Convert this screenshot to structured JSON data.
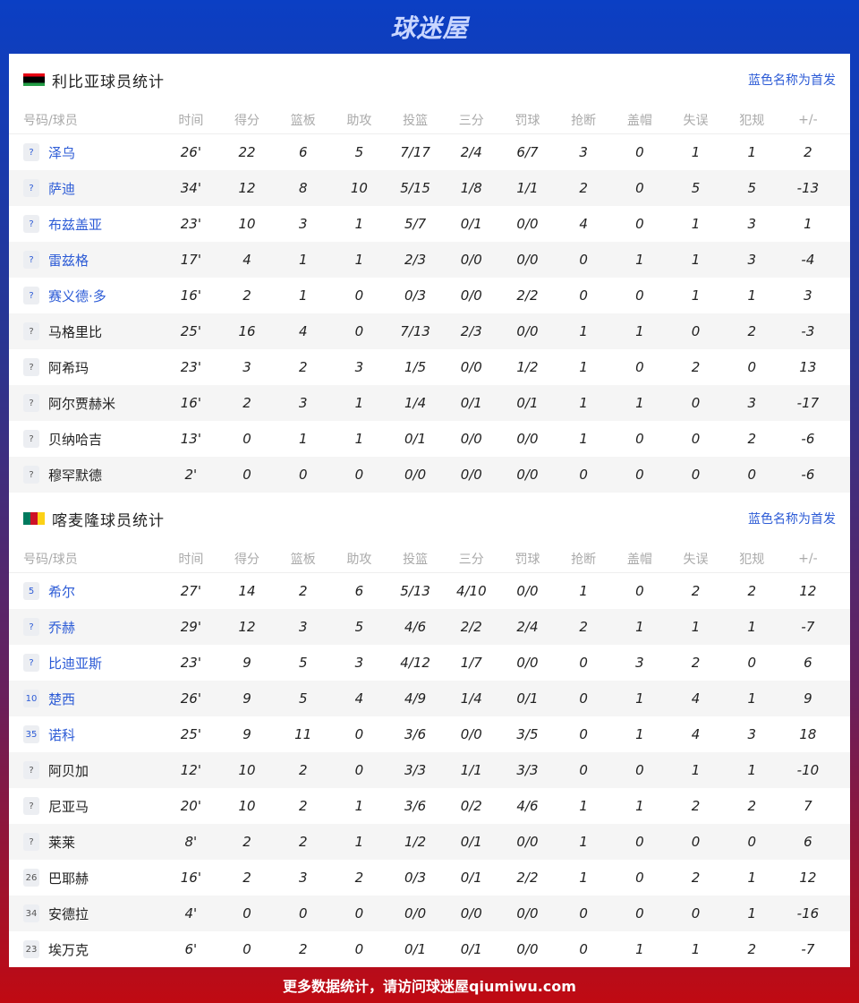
{
  "header": {
    "logo": "球迷屋"
  },
  "columns": [
    "号码/球员",
    "时间",
    "得分",
    "篮板",
    "助攻",
    "投篮",
    "三分",
    "罚球",
    "抢断",
    "盖帽",
    "失误",
    "犯规",
    "+/-"
  ],
  "teams": [
    {
      "title": "利比亚球员统计",
      "flag": "libya-flag",
      "note": "蓝色名称为首发",
      "players": [
        {
          "num": "?",
          "name": "泽乌",
          "starter": true,
          "stats": [
            "26'",
            "22",
            "6",
            "5",
            "7/17",
            "2/4",
            "6/7",
            "3",
            "0",
            "1",
            "1",
            "2"
          ]
        },
        {
          "num": "?",
          "name": "萨迪",
          "starter": true,
          "stats": [
            "34'",
            "12",
            "8",
            "10",
            "5/15",
            "1/8",
            "1/1",
            "2",
            "0",
            "5",
            "5",
            "-13"
          ]
        },
        {
          "num": "?",
          "name": "布兹盖亚",
          "starter": true,
          "stats": [
            "23'",
            "10",
            "3",
            "1",
            "5/7",
            "0/1",
            "0/0",
            "4",
            "0",
            "1",
            "3",
            "1"
          ]
        },
        {
          "num": "?",
          "name": "雷兹格",
          "starter": true,
          "stats": [
            "17'",
            "4",
            "1",
            "1",
            "2/3",
            "0/0",
            "0/0",
            "0",
            "1",
            "1",
            "3",
            "-4"
          ]
        },
        {
          "num": "?",
          "name": "赛义德·多",
          "starter": true,
          "stats": [
            "16'",
            "2",
            "1",
            "0",
            "0/3",
            "0/0",
            "2/2",
            "0",
            "0",
            "1",
            "1",
            "3"
          ]
        },
        {
          "num": "?",
          "name": "马格里比",
          "starter": false,
          "stats": [
            "25'",
            "16",
            "4",
            "0",
            "7/13",
            "2/3",
            "0/0",
            "1",
            "1",
            "0",
            "2",
            "-3"
          ]
        },
        {
          "num": "?",
          "name": "阿希玛",
          "starter": false,
          "stats": [
            "23'",
            "3",
            "2",
            "3",
            "1/5",
            "0/0",
            "1/2",
            "1",
            "0",
            "2",
            "0",
            "13"
          ]
        },
        {
          "num": "?",
          "name": "阿尔贾赫米",
          "starter": false,
          "stats": [
            "16'",
            "2",
            "3",
            "1",
            "1/4",
            "0/1",
            "0/1",
            "1",
            "1",
            "0",
            "3",
            "-17"
          ]
        },
        {
          "num": "?",
          "name": "贝纳哈吉",
          "starter": false,
          "stats": [
            "13'",
            "0",
            "1",
            "1",
            "0/1",
            "0/0",
            "0/0",
            "1",
            "0",
            "0",
            "2",
            "-6"
          ]
        },
        {
          "num": "?",
          "name": "穆罕默德",
          "starter": false,
          "stats": [
            "2'",
            "0",
            "0",
            "0",
            "0/0",
            "0/0",
            "0/0",
            "0",
            "0",
            "0",
            "0",
            "-6"
          ]
        }
      ]
    },
    {
      "title": "喀麦隆球员统计",
      "flag": "cameroon-flag",
      "note": "蓝色名称为首发",
      "players": [
        {
          "num": "5",
          "name": "希尔",
          "starter": true,
          "stats": [
            "27'",
            "14",
            "2",
            "6",
            "5/13",
            "4/10",
            "0/0",
            "1",
            "0",
            "2",
            "2",
            "12"
          ]
        },
        {
          "num": "?",
          "name": "乔赫",
          "starter": true,
          "stats": [
            "29'",
            "12",
            "3",
            "5",
            "4/6",
            "2/2",
            "2/4",
            "2",
            "1",
            "1",
            "1",
            "-7"
          ]
        },
        {
          "num": "?",
          "name": "比迪亚斯",
          "starter": true,
          "stats": [
            "23'",
            "9",
            "5",
            "3",
            "4/12",
            "1/7",
            "0/0",
            "0",
            "3",
            "2",
            "0",
            "6"
          ]
        },
        {
          "num": "10",
          "name": "楚西",
          "starter": true,
          "stats": [
            "26'",
            "9",
            "5",
            "4",
            "4/9",
            "1/4",
            "0/1",
            "0",
            "1",
            "4",
            "1",
            "9"
          ]
        },
        {
          "num": "35",
          "name": "诺科",
          "starter": true,
          "stats": [
            "25'",
            "9",
            "11",
            "0",
            "3/6",
            "0/0",
            "3/5",
            "0",
            "1",
            "4",
            "3",
            "18"
          ]
        },
        {
          "num": "?",
          "name": "阿贝加",
          "starter": false,
          "stats": [
            "12'",
            "10",
            "2",
            "0",
            "3/3",
            "1/1",
            "3/3",
            "0",
            "0",
            "1",
            "1",
            "-10"
          ]
        },
        {
          "num": "?",
          "name": "尼亚马",
          "starter": false,
          "stats": [
            "20'",
            "10",
            "2",
            "1",
            "3/6",
            "0/2",
            "4/6",
            "1",
            "1",
            "2",
            "2",
            "7"
          ]
        },
        {
          "num": "?",
          "name": "莱莱",
          "starter": false,
          "stats": [
            "8'",
            "2",
            "2",
            "1",
            "1/2",
            "0/1",
            "0/0",
            "1",
            "0",
            "0",
            "0",
            "6"
          ]
        },
        {
          "num": "26",
          "name": "巴耶赫",
          "starter": false,
          "stats": [
            "16'",
            "2",
            "3",
            "2",
            "0/3",
            "0/1",
            "2/2",
            "1",
            "0",
            "2",
            "1",
            "12"
          ]
        },
        {
          "num": "34",
          "name": "安德拉",
          "starter": false,
          "stats": [
            "4'",
            "0",
            "0",
            "0",
            "0/0",
            "0/0",
            "0/0",
            "0",
            "0",
            "0",
            "1",
            "-16"
          ]
        },
        {
          "num": "23",
          "name": "埃万克",
          "starter": false,
          "stats": [
            "6'",
            "0",
            "2",
            "0",
            "0/1",
            "0/1",
            "0/0",
            "0",
            "1",
            "1",
            "2",
            "-7"
          ]
        }
      ]
    }
  ],
  "footer": {
    "text": "更多数据统计，请访问球迷屋qiumiwu.com"
  }
}
